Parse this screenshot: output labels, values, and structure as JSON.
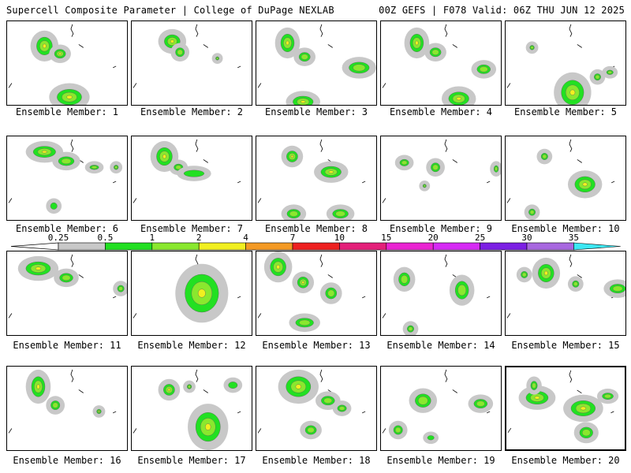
{
  "header": {
    "title_left": "Supercell Composite Parameter | College of DuPage NEXLAB",
    "title_right": "00Z GEFS | F078 Valid: 06Z THU JUN 12 2025"
  },
  "members": [
    {
      "label": "Ensemble Member: 1"
    },
    {
      "label": "Ensemble Member: 2"
    },
    {
      "label": "Ensemble Member: 3"
    },
    {
      "label": "Ensemble Member: 4"
    },
    {
      "label": "Ensemble Member: 5"
    },
    {
      "label": "Ensemble Member: 6"
    },
    {
      "label": "Ensemble Member: 7"
    },
    {
      "label": "Ensemble Member: 8"
    },
    {
      "label": "Ensemble Member: 9"
    },
    {
      "label": "Ensemble Member: 10"
    },
    {
      "label": "Ensemble Member: 11"
    },
    {
      "label": "Ensemble Member: 12"
    },
    {
      "label": "Ensemble Member: 13"
    },
    {
      "label": "Ensemble Member: 14"
    },
    {
      "label": "Ensemble Member: 15"
    },
    {
      "label": "Ensemble Member: 16"
    },
    {
      "label": "Ensemble Member: 17"
    },
    {
      "label": "Ensemble Member: 18"
    },
    {
      "label": "Ensemble Member: 19"
    },
    {
      "label": "Ensemble Member: 20",
      "selected": true
    }
  ],
  "colorbar": {
    "labels": [
      "0.25",
      "0.5",
      "1",
      "2",
      "4",
      "7",
      "10",
      "15",
      "20",
      "25",
      "30",
      "35"
    ],
    "colors": [
      "#c8c8c8",
      "#22e022",
      "#8ae82e",
      "#f2f020",
      "#f49a24",
      "#ee2020",
      "#e4207a",
      "#ea24d2",
      "#d62af4",
      "#7c20e4",
      "#a868e0",
      "#3ce8f4"
    ],
    "below_color": "#ffffff"
  }
}
